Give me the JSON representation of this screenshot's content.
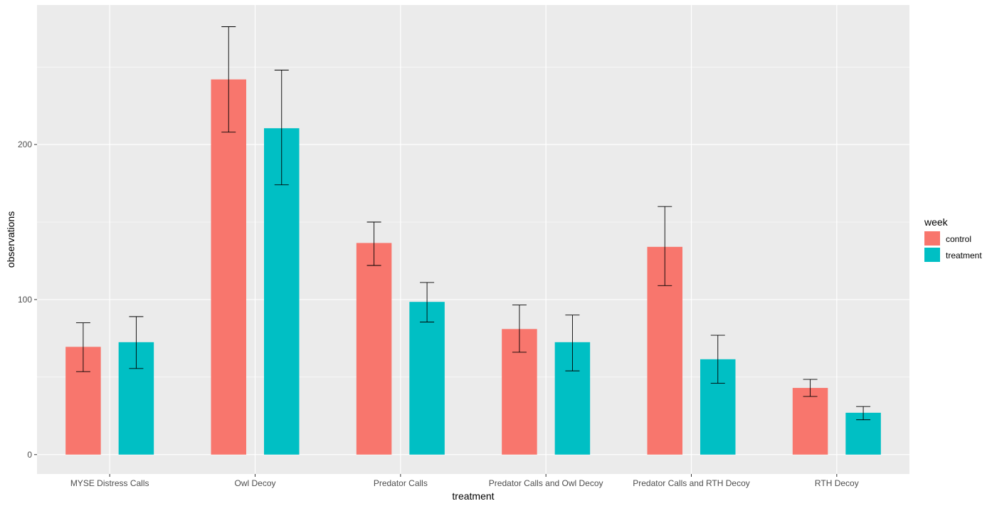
{
  "chart_data": {
    "type": "bar",
    "xlabel": "treatment",
    "ylabel": "observations",
    "categories": [
      "MYSE Distress Calls",
      "Owl Decoy",
      "Predator Calls",
      "Predator Calls and Owl Decoy",
      "Predator Calls and RTH Decoy",
      "RTH Decoy"
    ],
    "series": [
      {
        "name": "control",
        "color": "#F8766D",
        "values": [
          69.5,
          242,
          136.5,
          81,
          134,
          43
        ],
        "error_low": [
          53.5,
          208,
          122,
          66,
          109,
          37.5
        ],
        "error_high": [
          85,
          276,
          150,
          96.5,
          160,
          48.5
        ]
      },
      {
        "name": "treatment",
        "color": "#00BFC4",
        "values": [
          72.5,
          210.5,
          98.5,
          72.5,
          61.5,
          27
        ],
        "error_low": [
          55.5,
          174,
          85.5,
          54,
          46,
          22.5
        ],
        "error_high": [
          89,
          248,
          111,
          90,
          77,
          31
        ]
      }
    ],
    "ylim": [
      -12.5,
      290
    ],
    "yticks": [
      0,
      100,
      200
    ],
    "grid": true,
    "panel_background": "#EBEBEB",
    "legend_title": "week",
    "legend_position": "right"
  }
}
